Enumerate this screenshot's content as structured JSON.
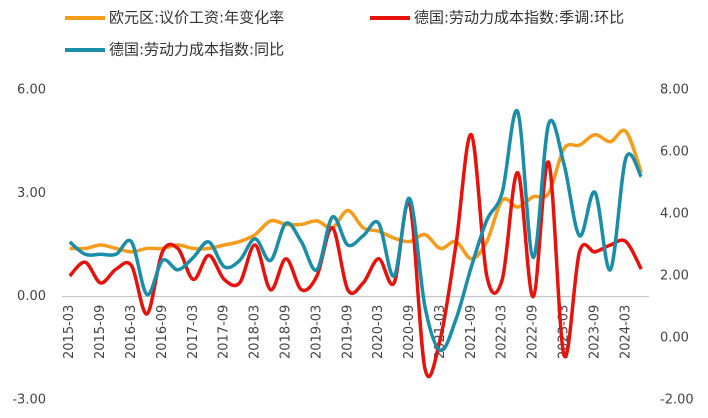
{
  "chart_data": {
    "type": "line",
    "categories": [
      "2015-03",
      null,
      "2015-09",
      null,
      "2016-03",
      null,
      "2016-09",
      null,
      "2017-03",
      null,
      "2017-09",
      null,
      "2018-03",
      null,
      "2018-09",
      null,
      "2019-03",
      null,
      "2019-09",
      null,
      "2020-03",
      null,
      "2020-09",
      null,
      "2021-03",
      null,
      "2021-09",
      null,
      "2022-03",
      null,
      "2022-09",
      null,
      "2023-03",
      null,
      "2023-09",
      null,
      "2024-03",
      null
    ],
    "series": [
      {
        "name": "欧元区:议价工资:年变化率",
        "color": "#f59c1a",
        "values": [
          1.4,
          1.4,
          1.5,
          1.4,
          1.3,
          1.4,
          1.4,
          1.5,
          1.4,
          1.4,
          1.5,
          1.6,
          1.8,
          2.2,
          2.1,
          2.1,
          2.2,
          2.0,
          2.5,
          2.0,
          1.9,
          1.7,
          1.6,
          1.8,
          1.4,
          1.6,
          1.1,
          1.6,
          2.8,
          2.6,
          2.9,
          3.0,
          4.3,
          4.4,
          4.7,
          4.5,
          4.8,
          3.6
        ]
      },
      {
        "name": "德国:劳动力成本指数:季调:环比",
        "color": "#e8120c",
        "values": [
          0.6,
          1.0,
          0.4,
          0.8,
          0.9,
          -0.5,
          1.3,
          1.4,
          0.5,
          1.2,
          0.5,
          0.4,
          1.5,
          0.2,
          1.1,
          0.2,
          0.6,
          2.0,
          0.2,
          0.4,
          1.1,
          0.4,
          2.7,
          -2.1,
          -1.2,
          1.5,
          4.7,
          0.6,
          0.5,
          3.6,
          0.0,
          3.9,
          -1.7,
          1.3,
          1.3,
          1.5,
          1.6,
          0.8
        ]
      },
      {
        "name": "德国:劳动力成本指数:同比",
        "color": "#1a8ea8",
        "axis": "y2",
        "values": [
          3.1,
          2.7,
          2.7,
          2.7,
          3.1,
          1.4,
          2.5,
          2.2,
          2.6,
          3.1,
          2.3,
          2.5,
          3.2,
          2.5,
          3.7,
          3.1,
          2.2,
          3.9,
          3.0,
          3.3,
          3.7,
          2.0,
          4.5,
          1.0,
          -0.4,
          0.6,
          2.3,
          3.8,
          4.7,
          7.3,
          2.6,
          6.9,
          5.6,
          3.3,
          4.7,
          2.2,
          5.8,
          5.2
        ]
      }
    ],
    "ylim": [
      -3,
      6
    ],
    "yticks": [
      {
        "value": -3,
        "label": "-3.00"
      },
      {
        "value": 0,
        "label": "0.00"
      },
      {
        "value": 3,
        "label": "3.00"
      },
      {
        "value": 6,
        "label": "6.00"
      }
    ],
    "y2lim": [
      -2,
      8
    ],
    "y2ticks": [
      {
        "value": -2,
        "label": "-2.00"
      },
      {
        "value": 0,
        "label": "0.00"
      },
      {
        "value": 2,
        "label": "2.00"
      },
      {
        "value": 4,
        "label": "4.00"
      },
      {
        "value": 6,
        "label": "6.00"
      },
      {
        "value": 8,
        "label": "8.00"
      }
    ],
    "legend": "top",
    "grid": false
  }
}
